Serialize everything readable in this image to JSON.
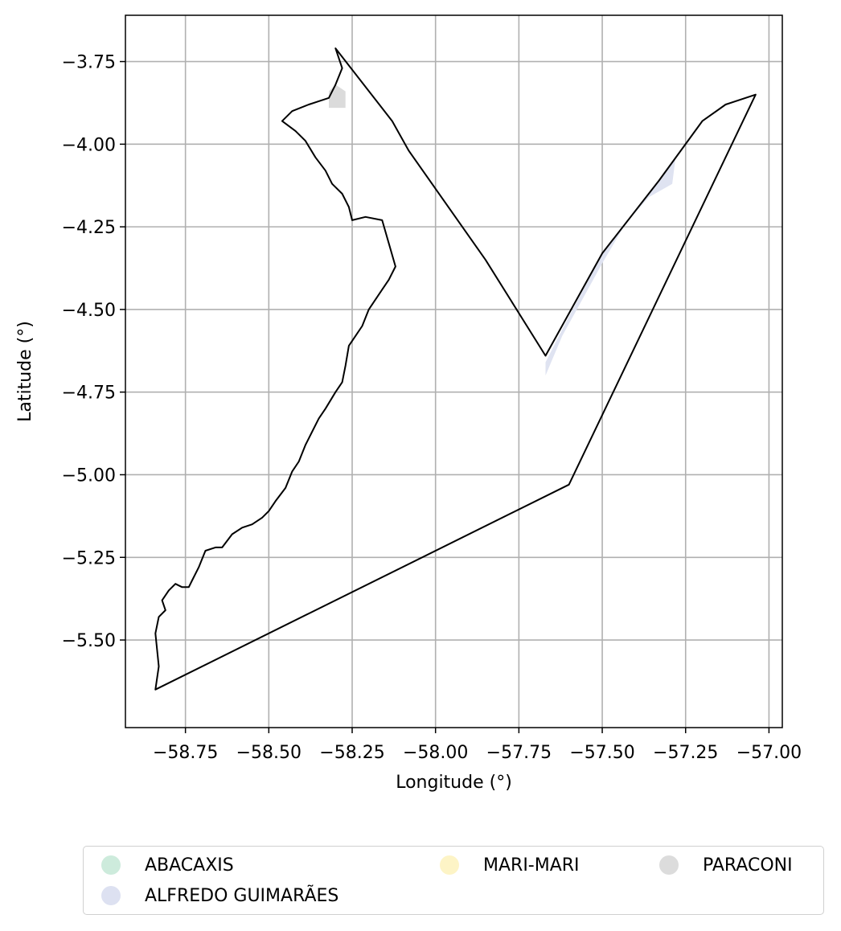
{
  "chart_data": {
    "type": "map",
    "xlabel": "Longitude (°)",
    "ylabel": "Latitude (°)",
    "xlim": [
      -58.93,
      -56.96
    ],
    "ylim": [
      -5.765,
      -3.61
    ],
    "xticks": [
      -58.75,
      -58.5,
      -58.25,
      -58.0,
      -57.75,
      -57.5,
      -57.25,
      -57.0
    ],
    "xtick_labels": [
      "−58.75",
      "−58.50",
      "−58.25",
      "−58.00",
      "−57.75",
      "−57.50",
      "−57.25",
      "−57.00"
    ],
    "yticks": [
      -3.75,
      -4.0,
      -4.25,
      -4.5,
      -4.75,
      -5.0,
      -5.25,
      -5.5
    ],
    "ytick_labels": [
      "−3.75",
      "−4.00",
      "−4.25",
      "−4.50",
      "−4.75",
      "−5.00",
      "−5.25",
      "−5.50"
    ],
    "grid": true,
    "legend_placement": "bottom",
    "boundary_outline": [
      [
        -58.3,
        -3.71
      ],
      [
        -58.13,
        -3.93
      ],
      [
        -58.08,
        -4.02
      ],
      [
        -57.85,
        -4.35
      ],
      [
        -57.67,
        -4.64
      ],
      [
        -57.5,
        -4.33
      ],
      [
        -57.33,
        -4.11
      ],
      [
        -57.2,
        -3.93
      ],
      [
        -57.13,
        -3.88
      ],
      [
        -57.04,
        -3.85
      ],
      [
        -57.6,
        -5.03
      ],
      [
        -58.84,
        -5.65
      ],
      [
        -58.83,
        -5.58
      ],
      [
        -58.84,
        -5.48
      ],
      [
        -58.83,
        -5.43
      ],
      [
        -58.81,
        -5.41
      ],
      [
        -58.82,
        -5.38
      ],
      [
        -58.8,
        -5.35
      ],
      [
        -58.78,
        -5.33
      ],
      [
        -58.76,
        -5.34
      ],
      [
        -58.74,
        -5.34
      ],
      [
        -58.73,
        -5.32
      ],
      [
        -58.71,
        -5.28
      ],
      [
        -58.69,
        -5.23
      ],
      [
        -58.66,
        -5.22
      ],
      [
        -58.64,
        -5.22
      ],
      [
        -58.61,
        -5.18
      ],
      [
        -58.58,
        -5.16
      ],
      [
        -58.55,
        -5.15
      ],
      [
        -58.52,
        -5.13
      ],
      [
        -58.5,
        -5.11
      ],
      [
        -58.48,
        -5.08
      ],
      [
        -58.45,
        -5.04
      ],
      [
        -58.43,
        -4.99
      ],
      [
        -58.41,
        -4.96
      ],
      [
        -58.39,
        -4.91
      ],
      [
        -58.37,
        -4.87
      ],
      [
        -58.35,
        -4.83
      ],
      [
        -58.33,
        -4.8
      ],
      [
        -58.3,
        -4.75
      ],
      [
        -58.28,
        -4.72
      ],
      [
        -58.27,
        -4.67
      ],
      [
        -58.26,
        -4.61
      ],
      [
        -58.24,
        -4.58
      ],
      [
        -58.22,
        -4.55
      ],
      [
        -58.2,
        -4.5
      ],
      [
        -58.18,
        -4.47
      ],
      [
        -58.16,
        -4.44
      ],
      [
        -58.14,
        -4.41
      ],
      [
        -58.12,
        -4.37
      ],
      [
        -58.14,
        -4.3
      ],
      [
        -58.16,
        -4.23
      ],
      [
        -58.21,
        -4.22
      ],
      [
        -58.25,
        -4.23
      ],
      [
        -58.26,
        -4.19
      ],
      [
        -58.28,
        -4.15
      ],
      [
        -58.31,
        -4.12
      ],
      [
        -58.33,
        -4.08
      ],
      [
        -58.36,
        -4.04
      ],
      [
        -58.39,
        -3.99
      ],
      [
        -58.42,
        -3.96
      ],
      [
        -58.46,
        -3.93
      ],
      [
        -58.43,
        -3.9
      ],
      [
        -58.38,
        -3.88
      ],
      [
        -58.32,
        -3.86
      ],
      [
        -58.3,
        -3.82
      ],
      [
        -58.28,
        -3.77
      ],
      [
        -58.3,
        -3.71
      ]
    ],
    "regions": [
      {
        "name": "ALFREDO GUIMARÃES",
        "color": "#dfe3f1",
        "polygon": [
          [
            -57.67,
            -4.7
          ],
          [
            -57.62,
            -4.58
          ],
          [
            -57.5,
            -4.36
          ],
          [
            -57.43,
            -4.24
          ],
          [
            -57.36,
            -4.16
          ],
          [
            -57.29,
            -4.12
          ],
          [
            -57.28,
            -4.04
          ],
          [
            -57.33,
            -4.11
          ],
          [
            -57.5,
            -4.33
          ],
          [
            -57.62,
            -4.56
          ],
          [
            -57.67,
            -4.66
          ]
        ]
      },
      {
        "name": "PARACONI",
        "color": "#dbdbdb",
        "polygon": [
          [
            -58.32,
            -3.89
          ],
          [
            -58.32,
            -3.84
          ],
          [
            -58.3,
            -3.82
          ],
          [
            -58.27,
            -3.84
          ],
          [
            -58.27,
            -3.89
          ]
        ]
      }
    ],
    "legend": [
      {
        "name": "ABACAXIS",
        "color": "#cdebdc"
      },
      {
        "name": "ALFREDO GUIMARÃES",
        "color": "#dde1f1"
      },
      {
        "name": "MARI-MARI",
        "color": "#fdf4c6"
      },
      {
        "name": "PARACONI",
        "color": "#dcdcdc"
      }
    ]
  }
}
